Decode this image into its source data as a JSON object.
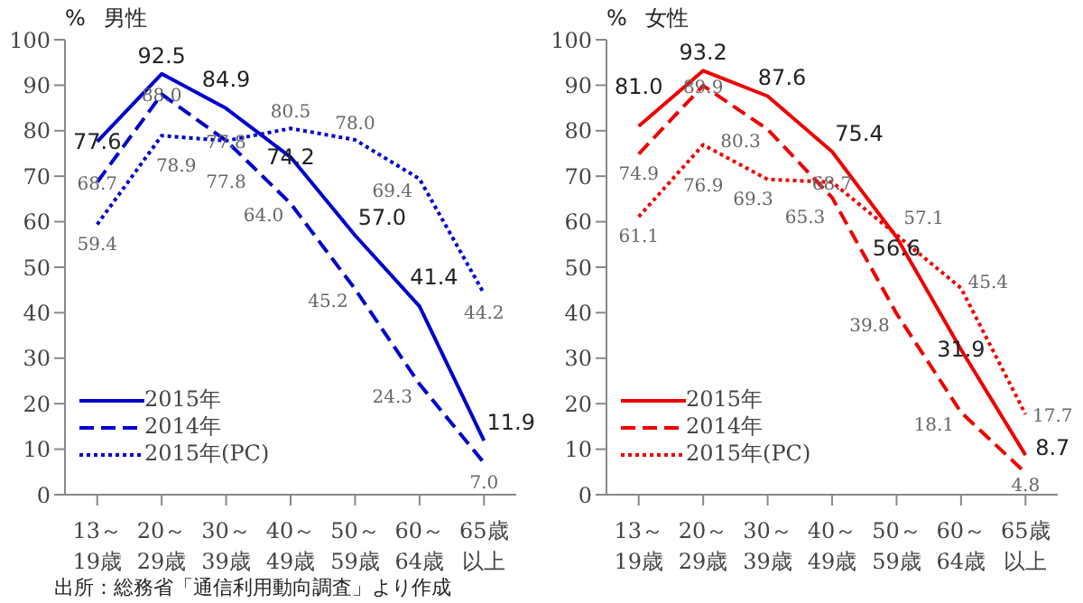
{
  "chart_data": [
    {
      "type": "line",
      "title": "男性",
      "ylabel": "%",
      "categories": [
        "13～19歳",
        "20～29歳",
        "30～39歳",
        "40～49歳",
        "50～59歳",
        "60～64歳",
        "65歳以上"
      ],
      "ylim": [
        0,
        100
      ],
      "yticks": [
        0,
        10,
        20,
        30,
        40,
        50,
        60,
        70,
        80,
        90,
        100
      ],
      "grid": false,
      "legend": "bottom left",
      "marker": "none",
      "series": [
        {
          "name": "2015年",
          "color": "#0000cc",
          "line_style": "solid",
          "values": [
            77.6,
            92.5,
            84.9,
            74.2,
            57.0,
            41.4,
            11.9
          ],
          "value_labels": [
            "77.6",
            "92.5",
            "84.9",
            "74.2",
            "57.0",
            "41.4",
            "11.9"
          ]
        },
        {
          "name": "2014年",
          "color": "#0000cc",
          "line_style": "dashed",
          "values": [
            68.7,
            88.0,
            77.8,
            64.0,
            45.2,
            24.3,
            7.0
          ],
          "value_labels": [
            "68.7",
            "88.0",
            "77.8",
            "64.0",
            "45.2",
            "24.3",
            "7.0"
          ]
        },
        {
          "name": "2015年(PC)",
          "color": "#0000cc",
          "line_style": "dotted",
          "values": [
            59.4,
            78.9,
            77.8,
            80.5,
            78.0,
            69.4,
            44.2
          ],
          "value_labels": [
            "59.4",
            "78.9",
            "77.8",
            "80.5",
            "78.0",
            "69.4",
            "44.2"
          ]
        }
      ],
      "annotations": [
        "出所：総務省「通信利用動向調査」より作成"
      ]
    },
    {
      "type": "line",
      "title": "女性",
      "ylabel": "%",
      "categories": [
        "13～19歳",
        "20～29歳",
        "30～39歳",
        "40～49歳",
        "50～59歳",
        "60～64歳",
        "65歳以上"
      ],
      "ylim": [
        0,
        100
      ],
      "yticks": [
        0,
        10,
        20,
        30,
        40,
        50,
        60,
        70,
        80,
        90,
        100
      ],
      "grid": false,
      "legend": "bottom left",
      "marker": "none",
      "series": [
        {
          "name": "2015年",
          "color": "#ee0000",
          "line_style": "solid",
          "values": [
            81.0,
            93.2,
            87.6,
            75.4,
            56.6,
            31.9,
            8.7
          ],
          "value_labels": [
            "81.0",
            "93.2",
            "87.6",
            "75.4",
            "56.6",
            "31.9",
            "8.7"
          ]
        },
        {
          "name": "2014年",
          "color": "#ee0000",
          "line_style": "dashed",
          "values": [
            74.9,
            89.9,
            80.3,
            65.3,
            39.8,
            18.1,
            4.8
          ],
          "value_labels": [
            "74.9",
            "89.9",
            "80.3",
            "65.3",
            "39.8",
            "18.1",
            "4.8"
          ]
        },
        {
          "name": "2015年(PC)",
          "color": "#ee0000",
          "line_style": "dotted",
          "values": [
            61.1,
            76.9,
            69.3,
            68.7,
            57.1,
            45.4,
            17.7
          ],
          "value_labels": [
            "61.1",
            "76.9",
            "69.3",
            "68.7",
            "57.1",
            "45.4",
            "17.7"
          ]
        }
      ]
    }
  ]
}
